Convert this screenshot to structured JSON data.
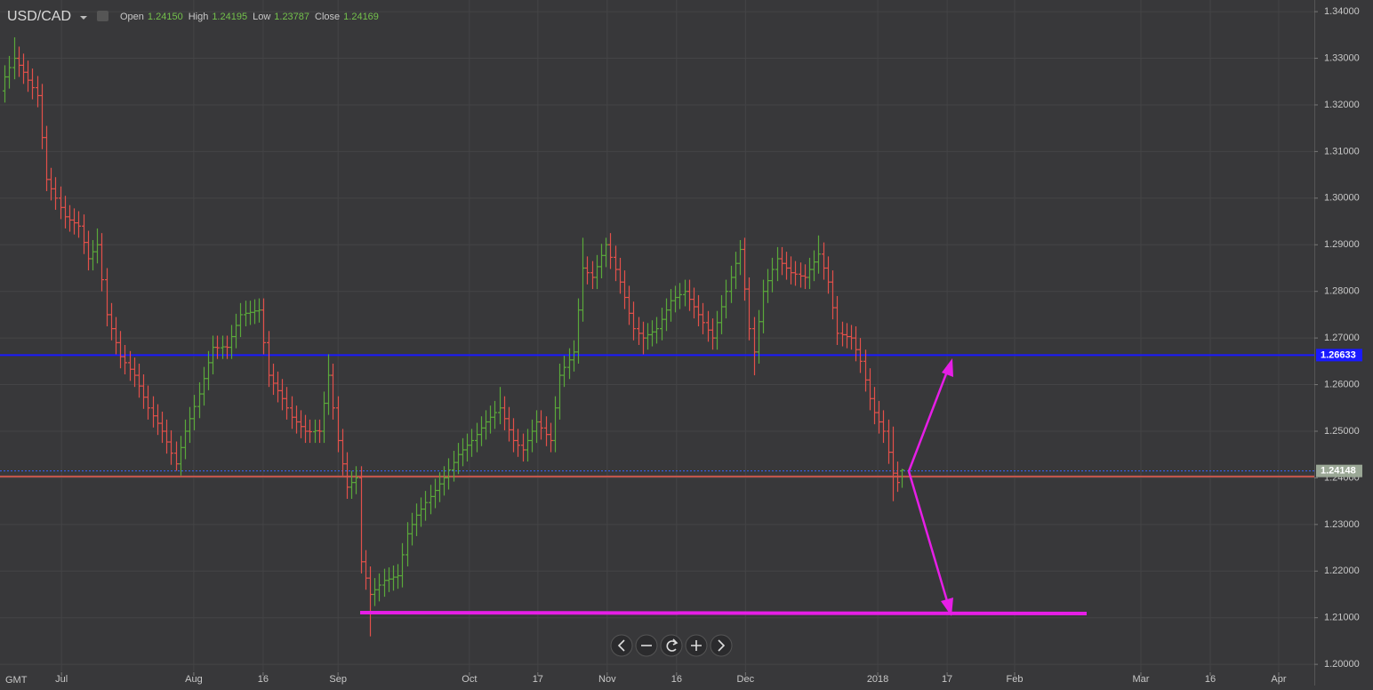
{
  "header": {
    "symbol": "USD/CAD",
    "fields": [
      {
        "label": "Open",
        "value": "1.24150"
      },
      {
        "label": "High",
        "value": "1.24195"
      },
      {
        "label": "Low",
        "value": "1.23787"
      },
      {
        "label": "Close",
        "value": "1.24169"
      }
    ],
    "timezone": "GMT"
  },
  "chart_data": {
    "type": "ohlc",
    "up_color": "#5aa83a",
    "down_color": "#e2504a",
    "grid": true,
    "ylim": [
      1.1985,
      1.3425
    ],
    "xlim": [
      -1,
      283.2
    ],
    "yticks": [
      {
        "value": 1.2,
        "label": "1.20000"
      },
      {
        "value": 1.21,
        "label": "1.21000"
      },
      {
        "value": 1.22,
        "label": "1.22000"
      },
      {
        "value": 1.23,
        "label": "1.23000"
      },
      {
        "value": 1.24,
        "label": "1.24000"
      },
      {
        "value": 1.25,
        "label": "1.25000"
      },
      {
        "value": 1.26,
        "label": "1.26000"
      },
      {
        "value": 1.27,
        "label": "1.27000"
      },
      {
        "value": 1.28,
        "label": "1.28000"
      },
      {
        "value": 1.29,
        "label": "1.29000"
      },
      {
        "value": 1.3,
        "label": "1.30000"
      },
      {
        "value": 1.31,
        "label": "1.31000"
      },
      {
        "value": 1.32,
        "label": "1.32000"
      },
      {
        "value": 1.33,
        "label": "1.33000"
      },
      {
        "value": 1.34,
        "label": "1.34000"
      }
    ],
    "xticks": [
      {
        "value": 12.3,
        "label": "Jul"
      },
      {
        "value": 40.9,
        "label": "Aug"
      },
      {
        "value": 55.9,
        "label": "16"
      },
      {
        "value": 72.1,
        "label": "Sep"
      },
      {
        "value": 100.5,
        "label": "Oct"
      },
      {
        "value": 115.3,
        "label": "17"
      },
      {
        "value": 130.3,
        "label": "Nov"
      },
      {
        "value": 145.3,
        "label": "16"
      },
      {
        "value": 160.2,
        "label": "Dec"
      },
      {
        "value": 188.8,
        "label": "2018"
      },
      {
        "value": 203.8,
        "label": "17"
      },
      {
        "value": 218.4,
        "label": "Feb"
      },
      {
        "value": 245.7,
        "label": "Mar"
      },
      {
        "value": 260.7,
        "label": "16"
      },
      {
        "value": 275.5,
        "label": "Apr"
      }
    ],
    "levels": [
      {
        "value": 1.26633,
        "label": "1.26633",
        "color": "#1a1aff",
        "label_bg": "#1a1aff"
      },
      {
        "value": 1.24148,
        "label": "1.24148",
        "color": "#3b63ff",
        "label_bg": "#9aa795",
        "dashed": true
      },
      {
        "value": 1.2403,
        "color": "#c8584c"
      }
    ],
    "bars": [
      [
        1.323,
        1.3285,
        1.3205,
        1.326
      ],
      [
        1.326,
        1.3305,
        1.3235,
        1.328
      ],
      [
        1.328,
        1.3345,
        1.3255,
        1.33
      ],
      [
        1.33,
        1.3325,
        1.326,
        1.3285
      ],
      [
        1.3285,
        1.331,
        1.3245,
        1.327
      ],
      [
        1.327,
        1.3295,
        1.3228,
        1.3253
      ],
      [
        1.3253,
        1.3278,
        1.3212,
        1.3237
      ],
      [
        1.3237,
        1.3262,
        1.3195,
        1.322
      ],
      [
        1.322,
        1.3245,
        1.3105,
        1.313
      ],
      [
        1.313,
        1.3155,
        1.3015,
        1.304
      ],
      [
        1.304,
        1.3065,
        1.2995,
        1.302
      ],
      [
        1.302,
        1.3045,
        1.2975,
        1.3
      ],
      [
        1.3,
        1.3025,
        1.2955,
        1.298
      ],
      [
        1.298,
        1.3005,
        1.2935,
        1.296
      ],
      [
        1.296,
        1.2985,
        1.2928,
        1.2953
      ],
      [
        1.2953,
        1.2978,
        1.2922,
        1.2947
      ],
      [
        1.2947,
        1.2972,
        1.2915,
        1.294
      ],
      [
        1.294,
        1.2965,
        1.288,
        1.2905
      ],
      [
        1.2905,
        1.293,
        1.2845,
        1.287
      ],
      [
        1.287,
        1.291,
        1.2845,
        1.2885
      ],
      [
        1.2885,
        1.2935,
        1.286,
        1.29
      ],
      [
        1.29,
        1.2925,
        1.28,
        1.2825
      ],
      [
        1.2825,
        1.285,
        1.2725,
        1.275
      ],
      [
        1.275,
        1.2775,
        1.2695,
        1.272
      ],
      [
        1.272,
        1.2745,
        1.2665,
        1.269
      ],
      [
        1.269,
        1.2715,
        1.2635,
        1.266
      ],
      [
        1.266,
        1.2685,
        1.2622,
        1.2647
      ],
      [
        1.2647,
        1.2672,
        1.2608,
        1.2633
      ],
      [
        1.2633,
        1.2658,
        1.2595,
        1.262
      ],
      [
        1.262,
        1.2645,
        1.2572,
        1.2597
      ],
      [
        1.2597,
        1.2622,
        1.2548,
        1.2573
      ],
      [
        1.2573,
        1.2598,
        1.2525,
        1.255
      ],
      [
        1.255,
        1.2575,
        1.2508,
        1.2533
      ],
      [
        1.2533,
        1.2558,
        1.2492,
        1.2517
      ],
      [
        1.2517,
        1.2542,
        1.2475,
        1.25
      ],
      [
        1.25,
        1.2525,
        1.2452,
        1.2477
      ],
      [
        1.2477,
        1.2502,
        1.2428,
        1.2453
      ],
      [
        1.2453,
        1.2478,
        1.2415,
        1.243
      ],
      [
        1.243,
        1.249,
        1.2405,
        1.2465
      ],
      [
        1.2465,
        1.2525,
        1.244,
        1.25
      ],
      [
        1.25,
        1.2552,
        1.2475,
        1.2527
      ],
      [
        1.2527,
        1.2578,
        1.2502,
        1.2553
      ],
      [
        1.2553,
        1.2605,
        1.2528,
        1.258
      ],
      [
        1.258,
        1.2638,
        1.2555,
        1.2613
      ],
      [
        1.2613,
        1.2672,
        1.2588,
        1.2647
      ],
      [
        1.2647,
        1.2705,
        1.2622,
        1.268
      ],
      [
        1.268,
        1.2705,
        1.2655,
        1.2679
      ],
      [
        1.2679,
        1.2705,
        1.2655,
        1.2681
      ],
      [
        1.2681,
        1.2705,
        1.2655,
        1.268
      ],
      [
        1.268,
        1.2728,
        1.2655,
        1.2703
      ],
      [
        1.2703,
        1.2752,
        1.2678,
        1.2727
      ],
      [
        1.2727,
        1.2775,
        1.2702,
        1.275
      ],
      [
        1.275,
        1.278,
        1.2725,
        1.2753
      ],
      [
        1.2753,
        1.278,
        1.2728,
        1.2755
      ],
      [
        1.2755,
        1.2783,
        1.273,
        1.2758
      ],
      [
        1.2758,
        1.2785,
        1.2733,
        1.276
      ],
      [
        1.276,
        1.2785,
        1.2665,
        1.269
      ],
      [
        1.269,
        1.2715,
        1.2595,
        1.262
      ],
      [
        1.262,
        1.2645,
        1.2578,
        1.2603
      ],
      [
        1.2603,
        1.2628,
        1.2562,
        1.2587
      ],
      [
        1.2587,
        1.2612,
        1.2545,
        1.257
      ],
      [
        1.257,
        1.2595,
        1.2525,
        1.255
      ],
      [
        1.255,
        1.2575,
        1.2505,
        1.253
      ],
      [
        1.253,
        1.2555,
        1.2495,
        1.252
      ],
      [
        1.252,
        1.2545,
        1.2485,
        1.251
      ],
      [
        1.251,
        1.2535,
        1.2475,
        1.25
      ],
      [
        1.25,
        1.2525,
        1.2475,
        1.2499
      ],
      [
        1.2499,
        1.2525,
        1.2475,
        1.2501
      ],
      [
        1.2501,
        1.2525,
        1.2475,
        1.25
      ],
      [
        1.25,
        1.2585,
        1.2475,
        1.256
      ],
      [
        1.256,
        1.2665,
        1.2535,
        1.262
      ],
      [
        1.262,
        1.2645,
        1.2525,
        1.255
      ],
      [
        1.255,
        1.2575,
        1.2455,
        1.248
      ],
      [
        1.248,
        1.2505,
        1.2405,
        1.243
      ],
      [
        1.243,
        1.2455,
        1.2355,
        1.238
      ],
      [
        1.238,
        1.2415,
        1.2355,
        1.239
      ],
      [
        1.239,
        1.2425,
        1.2365,
        1.24
      ],
      [
        1.24,
        1.2425,
        1.2195,
        1.222
      ],
      [
        1.222,
        1.2245,
        1.216,
        1.2185
      ],
      [
        1.2185,
        1.221,
        1.206,
        1.215
      ],
      [
        1.215,
        1.2185,
        1.2125,
        1.216
      ],
      [
        1.216,
        1.2195,
        1.2135,
        1.217
      ],
      [
        1.217,
        1.2205,
        1.2145,
        1.218
      ],
      [
        1.218,
        1.2208,
        1.2155,
        1.2183
      ],
      [
        1.2183,
        1.2212,
        1.2158,
        1.2187
      ],
      [
        1.2187,
        1.2215,
        1.2162,
        1.219
      ],
      [
        1.219,
        1.226,
        1.2165,
        1.2235
      ],
      [
        1.2235,
        1.2305,
        1.221,
        1.228
      ],
      [
        1.228,
        1.2325,
        1.2255,
        1.23
      ],
      [
        1.23,
        1.2345,
        1.2275,
        1.232
      ],
      [
        1.232,
        1.2358,
        1.2295,
        1.2333
      ],
      [
        1.2333,
        1.2372,
        1.2308,
        1.2347
      ],
      [
        1.2347,
        1.2385,
        1.2322,
        1.236
      ],
      [
        1.236,
        1.2398,
        1.2335,
        1.2373
      ],
      [
        1.2373,
        1.2412,
        1.2348,
        1.2387
      ],
      [
        1.2387,
        1.2425,
        1.2362,
        1.24
      ],
      [
        1.24,
        1.2442,
        1.2375,
        1.2417
      ],
      [
        1.2417,
        1.2458,
        1.2392,
        1.2433
      ],
      [
        1.2433,
        1.2475,
        1.2408,
        1.245
      ],
      [
        1.245,
        1.2485,
        1.2425,
        1.246
      ],
      [
        1.246,
        1.2495,
        1.2435,
        1.247
      ],
      [
        1.247,
        1.2505,
        1.2445,
        1.248
      ],
      [
        1.248,
        1.2518,
        1.2455,
        1.2493
      ],
      [
        1.2493,
        1.2532,
        1.2468,
        1.2507
      ],
      [
        1.2507,
        1.2545,
        1.2482,
        1.252
      ],
      [
        1.252,
        1.2555,
        1.2495,
        1.253
      ],
      [
        1.253,
        1.2565,
        1.2505,
        1.254
      ],
      [
        1.254,
        1.2595,
        1.2515,
        1.255
      ],
      [
        1.255,
        1.2575,
        1.2502,
        1.2527
      ],
      [
        1.2527,
        1.2552,
        1.2478,
        1.2503
      ],
      [
        1.2503,
        1.2528,
        1.2455,
        1.248
      ],
      [
        1.248,
        1.2505,
        1.2445,
        1.247
      ],
      [
        1.247,
        1.2495,
        1.2435,
        1.246
      ],
      [
        1.246,
        1.2505,
        1.2435,
        1.248
      ],
      [
        1.248,
        1.2525,
        1.2455,
        1.25
      ],
      [
        1.25,
        1.2545,
        1.2475,
        1.252
      ],
      [
        1.252,
        1.2545,
        1.2482,
        1.2507
      ],
      [
        1.2507,
        1.2532,
        1.2468,
        1.2493
      ],
      [
        1.2493,
        1.2518,
        1.2455,
        1.248
      ],
      [
        1.248,
        1.2575,
        1.2455,
        1.255
      ],
      [
        1.255,
        1.2645,
        1.2525,
        1.262
      ],
      [
        1.262,
        1.2662,
        1.2595,
        1.2637
      ],
      [
        1.2637,
        1.2678,
        1.2612,
        1.2653
      ],
      [
        1.2653,
        1.2695,
        1.2628,
        1.267
      ],
      [
        1.267,
        1.2785,
        1.2645,
        1.276
      ],
      [
        1.276,
        1.2915,
        1.2735,
        1.285
      ],
      [
        1.285,
        1.2875,
        1.2815,
        1.284
      ],
      [
        1.284,
        1.2865,
        1.2805,
        1.283
      ],
      [
        1.283,
        1.2878,
        1.2805,
        1.2853
      ],
      [
        1.2853,
        1.2902,
        1.2828,
        1.2877
      ],
      [
        1.2877,
        1.2915,
        1.2852,
        1.29
      ],
      [
        1.29,
        1.2925,
        1.2848,
        1.2873
      ],
      [
        1.2873,
        1.2898,
        1.2822,
        1.2847
      ],
      [
        1.2847,
        1.2872,
        1.2795,
        1.282
      ],
      [
        1.282,
        1.2845,
        1.2762,
        1.2787
      ],
      [
        1.2787,
        1.2812,
        1.2728,
        1.2753
      ],
      [
        1.2753,
        1.2778,
        1.2695,
        1.272
      ],
      [
        1.272,
        1.2745,
        1.2685,
        1.271
      ],
      [
        1.271,
        1.2735,
        1.2665,
        1.27
      ],
      [
        1.27,
        1.2732,
        1.2675,
        1.2707
      ],
      [
        1.2707,
        1.2738,
        1.2682,
        1.2713
      ],
      [
        1.2713,
        1.2745,
        1.2688,
        1.272
      ],
      [
        1.272,
        1.2765,
        1.2695,
        1.274
      ],
      [
        1.274,
        1.2785,
        1.2715,
        1.276
      ],
      [
        1.276,
        1.2805,
        1.2735,
        1.278
      ],
      [
        1.278,
        1.2812,
        1.2755,
        1.2787
      ],
      [
        1.2787,
        1.2818,
        1.2762,
        1.2793
      ],
      [
        1.2793,
        1.2825,
        1.2768,
        1.28
      ],
      [
        1.28,
        1.2825,
        1.2758,
        1.2783
      ],
      [
        1.2783,
        1.2808,
        1.2742,
        1.2767
      ],
      [
        1.2767,
        1.2792,
        1.2725,
        1.275
      ],
      [
        1.275,
        1.2775,
        1.2708,
        1.2733
      ],
      [
        1.2733,
        1.2758,
        1.2692,
        1.2717
      ],
      [
        1.2717,
        1.2742,
        1.2675,
        1.27
      ],
      [
        1.27,
        1.2758,
        1.2675,
        1.2733
      ],
      [
        1.2733,
        1.2792,
        1.2708,
        1.2767
      ],
      [
        1.2767,
        1.2825,
        1.2742,
        1.28
      ],
      [
        1.28,
        1.2855,
        1.2775,
        1.283
      ],
      [
        1.283,
        1.2885,
        1.2805,
        1.286
      ],
      [
        1.286,
        1.291,
        1.2835,
        1.289
      ],
      [
        1.289,
        1.2915,
        1.278,
        1.2805
      ],
      [
        1.2805,
        1.283,
        1.2695,
        1.272
      ],
      [
        1.272,
        1.2745,
        1.262,
        1.267
      ],
      [
        1.267,
        1.276,
        1.2645,
        1.2735
      ],
      [
        1.2735,
        1.2825,
        1.271,
        1.28
      ],
      [
        1.28,
        1.2848,
        1.2775,
        1.2823
      ],
      [
        1.2823,
        1.2872,
        1.2798,
        1.2847
      ],
      [
        1.2847,
        1.2895,
        1.2822,
        1.287
      ],
      [
        1.287,
        1.2895,
        1.2835,
        1.286
      ],
      [
        1.286,
        1.2885,
        1.2825,
        1.285
      ],
      [
        1.285,
        1.2875,
        1.2815,
        1.284
      ],
      [
        1.284,
        1.2865,
        1.2812,
        1.2837
      ],
      [
        1.2837,
        1.2862,
        1.2808,
        1.2833
      ],
      [
        1.2833,
        1.2858,
        1.2805,
        1.283
      ],
      [
        1.283,
        1.2872,
        1.2805,
        1.2847
      ],
      [
        1.2847,
        1.2888,
        1.2822,
        1.2863
      ],
      [
        1.2863,
        1.292,
        1.2838,
        1.288
      ],
      [
        1.288,
        1.2905,
        1.2825,
        1.285
      ],
      [
        1.285,
        1.2875,
        1.2795,
        1.282
      ],
      [
        1.282,
        1.2845,
        1.274,
        1.2765
      ],
      [
        1.2765,
        1.279,
        1.2685,
        1.271
      ],
      [
        1.271,
        1.2735,
        1.2682,
        1.2707
      ],
      [
        1.2707,
        1.2732,
        1.2678,
        1.2703
      ],
      [
        1.2703,
        1.2728,
        1.2675,
        1.27
      ],
      [
        1.27,
        1.2725,
        1.265,
        1.2675
      ],
      [
        1.2675,
        1.27,
        1.2625,
        1.265
      ],
      [
        1.265,
        1.2675,
        1.2585,
        1.261
      ],
      [
        1.261,
        1.2635,
        1.2545,
        1.257
      ],
      [
        1.257,
        1.2595,
        1.2515,
        1.254
      ],
      [
        1.254,
        1.2565,
        1.2495,
        1.252
      ],
      [
        1.252,
        1.2545,
        1.2475,
        1.25
      ],
      [
        1.25,
        1.2525,
        1.243,
        1.2455
      ],
      [
        1.2455,
        1.251,
        1.235,
        1.241
      ],
      [
        1.241,
        1.2435,
        1.237,
        1.239
      ],
      [
        1.2415,
        1.24195,
        1.23787,
        1.24169
      ]
    ]
  }
}
